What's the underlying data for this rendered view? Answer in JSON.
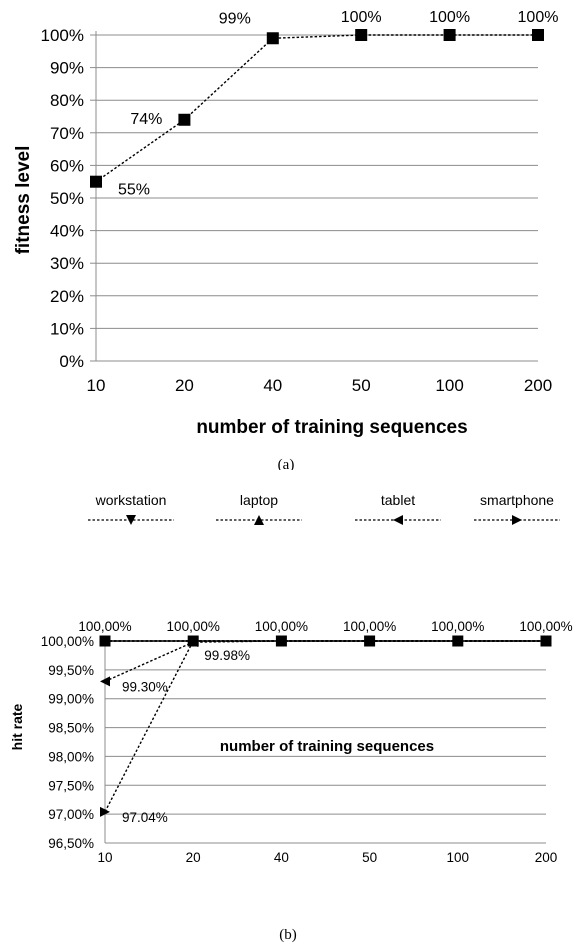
{
  "chart_data": [
    {
      "type": "line",
      "title": "",
      "caption": "(a)",
      "xlabel": "number of training sequences",
      "ylabel": "fitness level",
      "categories": [
        "10",
        "20",
        "40",
        "50",
        "100",
        "200"
      ],
      "yticks": [
        "0%",
        "10%",
        "20%",
        "30%",
        "40%",
        "50%",
        "60%",
        "70%",
        "80%",
        "90%",
        "100%"
      ],
      "ylim": [
        0,
        100
      ],
      "grid": true,
      "series": [
        {
          "values": [
            55,
            74,
            99,
            100,
            100,
            100
          ],
          "labels": [
            "55%",
            "74%",
            "99%",
            "100%",
            "100%",
            "100%"
          ],
          "marker": "square",
          "line": "dotted"
        }
      ]
    },
    {
      "type": "line",
      "title": "",
      "caption": "(b)",
      "xlabel": "number of training sequences",
      "ylabel": "hit rate",
      "categories": [
        "10",
        "20",
        "40",
        "50",
        "100",
        "200"
      ],
      "yticks": [
        "96,50%",
        "97,00%",
        "97,50%",
        "98,00%",
        "98,50%",
        "99,00%",
        "99,50%",
        "100,00%"
      ],
      "ylim": [
        96.5,
        100
      ],
      "grid": true,
      "legend_position": "top",
      "series": [
        {
          "name": "workstation",
          "marker": "triangle-down",
          "line": "dotted",
          "values": [
            100,
            100,
            100,
            100,
            100,
            100
          ]
        },
        {
          "name": "laptop",
          "marker": "triangle-up",
          "line": "dotted",
          "values": [
            100,
            100,
            100,
            100,
            100,
            100
          ]
        },
        {
          "name": "tablet",
          "marker": "triangle-left",
          "line": "dotted",
          "values": [
            99.3,
            99.98,
            100,
            100,
            100,
            100
          ]
        },
        {
          "name": "smartphone",
          "marker": "triangle-right",
          "line": "dotted",
          "values": [
            97.04,
            100,
            100,
            100,
            100,
            100
          ]
        },
        {
          "name": "",
          "marker": "square",
          "line": "solid",
          "values": [
            100,
            100,
            100,
            100,
            100,
            100
          ]
        }
      ],
      "annotations": [
        {
          "x": "10",
          "y": 100,
          "text": "100,00%",
          "pos": "above"
        },
        {
          "x": "20",
          "y": 100,
          "text": "100,00%",
          "pos": "above"
        },
        {
          "x": "40",
          "y": 100,
          "text": "100,00%",
          "pos": "above"
        },
        {
          "x": "50",
          "y": 100,
          "text": "100,00%",
          "pos": "above"
        },
        {
          "x": "100",
          "y": 100,
          "text": "100,00%",
          "pos": "above"
        },
        {
          "x": "200",
          "y": 100,
          "text": "100,00%",
          "pos": "above"
        },
        {
          "x": "20",
          "y": 99.98,
          "text": "99.98%",
          "pos": "below-right"
        },
        {
          "x": "10",
          "y": 99.3,
          "text": "99.30%",
          "pos": "right"
        },
        {
          "x": "10",
          "y": 97.04,
          "text": "97.04%",
          "pos": "right"
        }
      ]
    }
  ]
}
